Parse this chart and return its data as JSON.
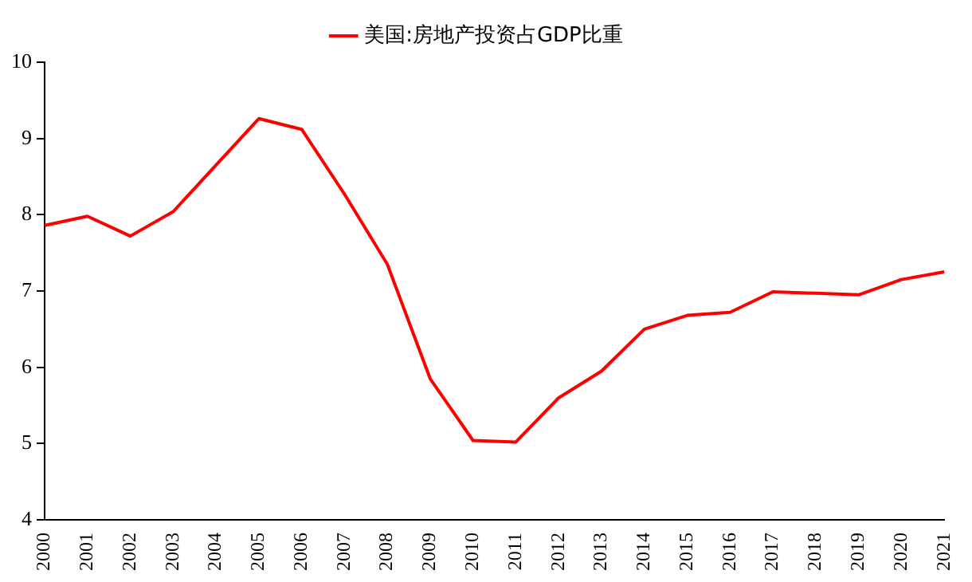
{
  "chart_data": {
    "type": "line",
    "categories": [
      "2000",
      "2001",
      "2002",
      "2003",
      "2004",
      "2005",
      "2006",
      "2007",
      "2008",
      "2009",
      "2010",
      "2011",
      "2012",
      "2013",
      "2014",
      "2015",
      "2016",
      "2017",
      "2018",
      "2019",
      "2020",
      "2021"
    ],
    "series": [
      {
        "name": "美国:房地产投资占GDP比重",
        "color": "#ff0000",
        "values": [
          7.86,
          7.98,
          7.72,
          8.04,
          8.65,
          9.26,
          9.12,
          8.27,
          7.35,
          5.85,
          5.04,
          5.02,
          5.6,
          5.95,
          6.5,
          6.68,
          6.72,
          6.99,
          6.97,
          6.95,
          7.15,
          7.25
        ]
      }
    ],
    "ylim": [
      4,
      10
    ],
    "yticks": [
      4,
      5,
      6,
      7,
      8,
      9,
      10
    ],
    "grid": false,
    "legend": "top",
    "marker": "none",
    "line_style": "solid"
  }
}
